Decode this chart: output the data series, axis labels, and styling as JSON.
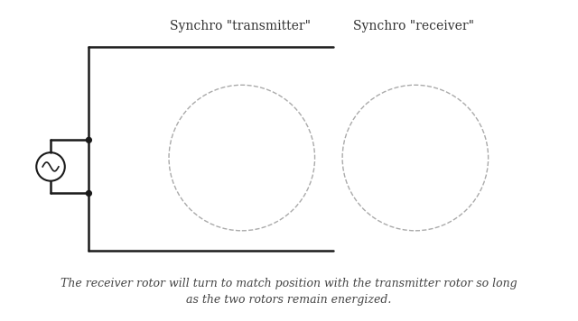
{
  "title_transmitter": "Synchro \"transmitter\"",
  "title_receiver": "Synchro \"receiver\"",
  "caption_line1": "The receiver rotor will turn to match position with the transmitter rotor so long",
  "caption_line2": "as the two rotors remain energized.",
  "bg_color": "#ffffff",
  "line_color": "#1a1a1a",
  "dot_color": "#1a1a1a",
  "circle_color": "#cccccc",
  "title_fontsize": 10,
  "caption_fontsize": 9
}
